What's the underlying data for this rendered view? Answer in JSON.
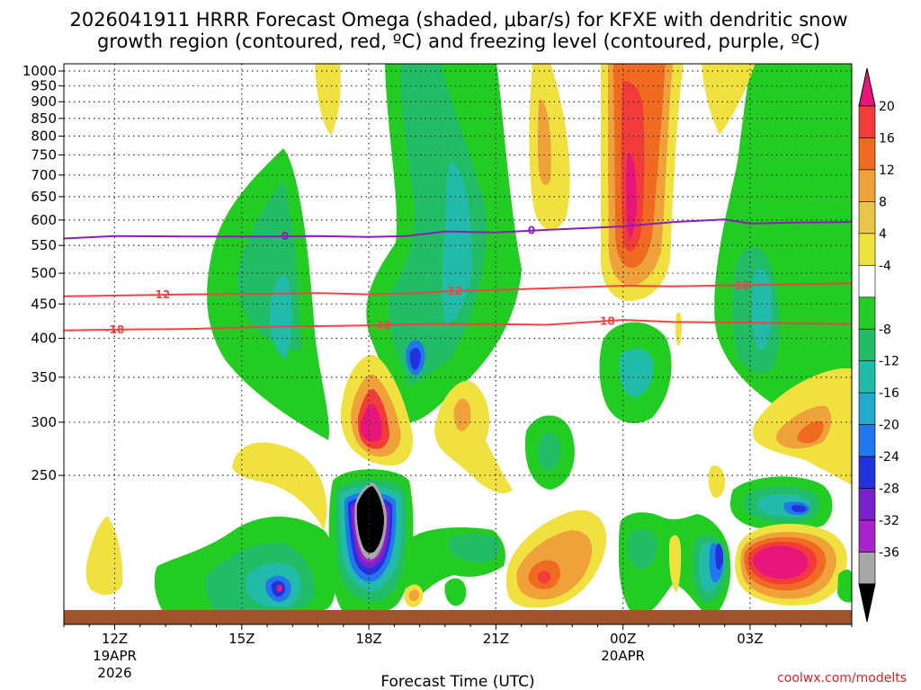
{
  "chart_data": {
    "type": "heatmap",
    "title_line1": "2026041911 HRRR Forecast Omega (shaded, μbar/s) for KFXE with dendritic snow",
    "title_line2": "growth region (contoured, red, ºC) and freezing level (contoured, purple, ºC)",
    "xlabel": "Forecast Time (UTC)",
    "credit": "coolwx.com/modelts",
    "x_range_hours": [
      -2,
      29
    ],
    "y_range_hpa": [
      1025,
      150
    ],
    "x_ticks": [
      {
        "hour": 0,
        "label": "12Z",
        "sub1": "19APR",
        "sub2": "2026"
      },
      {
        "hour": 5,
        "label": "15Z",
        "sub1": "",
        "sub2": ""
      },
      {
        "hour": 10,
        "label": "18Z",
        "sub1": "",
        "sub2": ""
      },
      {
        "hour": 15,
        "label": "21Z",
        "sub1": "",
        "sub2": ""
      },
      {
        "hour": 20,
        "label": "00Z",
        "sub1": "20APR",
        "sub2": ""
      },
      {
        "hour": 25,
        "label": "03Z",
        "sub1": "",
        "sub2": ""
      }
    ],
    "y_ticks": [
      250,
      300,
      350,
      400,
      450,
      500,
      550,
      600,
      650,
      700,
      750,
      800,
      850,
      900,
      950,
      1000
    ],
    "colorbar": {
      "labels": [
        "20",
        "16",
        "12",
        "8",
        "4",
        "-4",
        "-8",
        "-12",
        "-16",
        "-20",
        "-24",
        "-28",
        "-32",
        "-36"
      ],
      "colors": [
        "#e8157a",
        "#f23b3b",
        "#f06a22",
        "#f0a23a",
        "#e8c44a",
        "#f0e040",
        "#ffffff",
        "#22cc22",
        "#22bb66",
        "#22bbaa",
        "#22aacc",
        "#2277ee",
        "#2233dd",
        "#7722cc",
        "#aa22cc",
        "#a8a8a8",
        "#000000"
      ]
    },
    "contours": [
      {
        "name": "dgz-upper",
        "value": -18,
        "label": "-18",
        "color": "#ee4444",
        "points": [
          [
            -2,
            411
          ],
          [
            0,
            412
          ],
          [
            3,
            413
          ],
          [
            6,
            416
          ],
          [
            8,
            417
          ],
          [
            10,
            418
          ],
          [
            12,
            420
          ],
          [
            15,
            420
          ],
          [
            17,
            419
          ],
          [
            20,
            426
          ],
          [
            22,
            423
          ],
          [
            25,
            422
          ],
          [
            29,
            420
          ]
        ],
        "label_hours": [
          0,
          10.5,
          19.3
        ]
      },
      {
        "name": "dgz-lower",
        "value": -12,
        "label": "-12",
        "color": "#ee4444",
        "points": [
          [
            -2,
            462
          ],
          [
            0,
            463
          ],
          [
            3,
            465
          ],
          [
            6,
            466
          ],
          [
            8,
            467
          ],
          [
            10,
            465
          ],
          [
            12,
            467
          ],
          [
            13,
            470
          ],
          [
            15,
            472
          ],
          [
            18,
            476
          ],
          [
            20,
            479
          ],
          [
            22,
            478
          ],
          [
            25,
            480
          ],
          [
            29,
            483
          ]
        ],
        "label_hours": [
          1.8,
          13.3,
          24.6
        ]
      },
      {
        "name": "freezing-level",
        "value": 0,
        "label": "0",
        "color": "#8a1fb5",
        "points": [
          [
            -2,
            563
          ],
          [
            0,
            568
          ],
          [
            3,
            567
          ],
          [
            6,
            567
          ],
          [
            8,
            568
          ],
          [
            10,
            566
          ],
          [
            11.5,
            568
          ],
          [
            13,
            577
          ],
          [
            15,
            575
          ],
          [
            17,
            580
          ],
          [
            20,
            587
          ],
          [
            22,
            596
          ],
          [
            24,
            601
          ],
          [
            25,
            593
          ],
          [
            27,
            595
          ],
          [
            29,
            596
          ]
        ],
        "label_hours": [
          6.7,
          16.4
        ]
      }
    ],
    "omega_features": [
      {
        "name": "green-column-17z",
        "level": "-4",
        "hour": 8.5,
        "p_top": 150,
        "p_bottom": 520
      },
      {
        "name": "green-column-20z",
        "level": "-4",
        "hour": 13.5,
        "p_top": 150,
        "p_bottom": 460
      },
      {
        "name": "ascent-core-18z-low",
        "level": "-36",
        "hour": 10,
        "p_top": 700,
        "p_bottom": 880
      },
      {
        "name": "descent-core-00z-aloft",
        "level": "20",
        "hour": 20,
        "p_top": 250,
        "p_bottom": 360
      },
      {
        "name": "descent-core-03z-low",
        "level": "20",
        "hour": 25.2,
        "p_top": 850,
        "p_bottom": 920
      },
      {
        "name": "descent-core-18z-mid",
        "level": "16",
        "hour": 10,
        "p_top": 550,
        "p_bottom": 620
      }
    ]
  }
}
